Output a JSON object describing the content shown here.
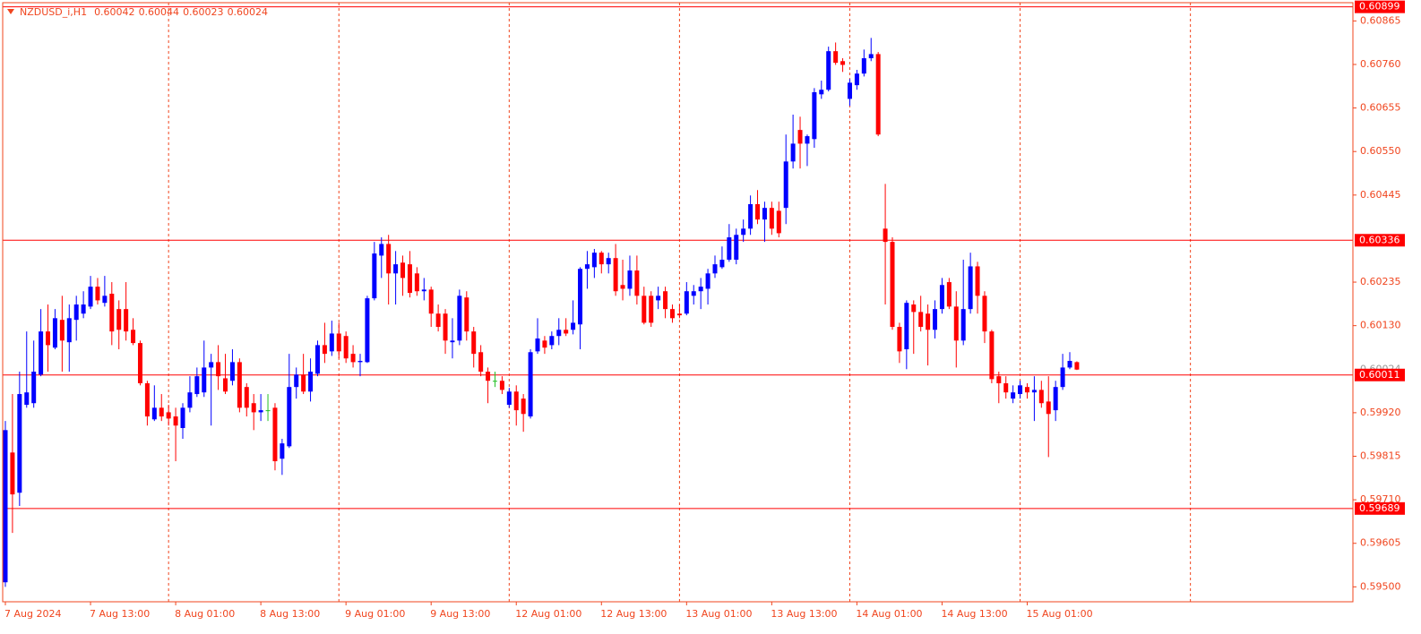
{
  "chart_data": {
    "type": "candlestick",
    "title": "NZDUSD_i,H1",
    "up_color": "#0000ff",
    "down_color": "#ff0000",
    "doji_color": "#22c022",
    "axis_color": "#f0451e",
    "hline_color": "#ff0000",
    "ylim": [
      0.59464,
      0.60909
    ],
    "yticks": [
      0.60865,
      {
        "value": 0.6076,
        "label": "0.60760"
      },
      0.60655,
      {
        "value": 0.6055,
        "label": "0.60550"
      },
      0.60445,
      0.60235,
      {
        "value": 0.6013,
        "label": "0.60130"
      },
      {
        "value": 0.5992,
        "label": "0.59920"
      },
      0.59815,
      {
        "value": 0.5971,
        "label": "0.59710"
      },
      0.59605,
      {
        "value": 0.595,
        "label": "0.59500"
      }
    ],
    "hlines": [
      0.60899,
      0.60336,
      0.60011,
      0.59689
    ],
    "categories": [
      "7 Aug 2024",
      null,
      null,
      null,
      null,
      null,
      null,
      null,
      null,
      null,
      null,
      null,
      "7 Aug 13:00",
      null,
      null,
      null,
      null,
      null,
      null,
      null,
      null,
      null,
      null,
      null,
      "8 Aug 01:00",
      null,
      null,
      null,
      null,
      null,
      null,
      null,
      null,
      null,
      null,
      null,
      "8 Aug 13:00",
      null,
      null,
      null,
      null,
      null,
      null,
      null,
      null,
      null,
      null,
      null,
      "9 Aug 01:00",
      null,
      null,
      null,
      null,
      null,
      null,
      null,
      null,
      null,
      null,
      null,
      "9 Aug 13:00",
      null,
      null,
      null,
      null,
      null,
      null,
      null,
      null,
      null,
      null,
      null,
      "12 Aug 01:00",
      null,
      null,
      null,
      null,
      null,
      null,
      null,
      null,
      null,
      null,
      null,
      "12 Aug 13:00",
      null,
      null,
      null,
      null,
      null,
      null,
      null,
      null,
      null,
      null,
      null,
      "13 Aug 01:00",
      null,
      null,
      null,
      null,
      null,
      null,
      null,
      null,
      null,
      null,
      null,
      "13 Aug 13:00",
      null,
      null,
      null,
      null,
      null,
      null,
      null,
      null,
      null,
      null,
      null,
      "14 Aug 01:00",
      null,
      null,
      null,
      null,
      null,
      null,
      null,
      null,
      null,
      null,
      null,
      "14 Aug 13:00",
      null,
      null,
      null,
      null,
      null,
      null,
      null,
      null,
      null,
      null,
      null,
      "15 Aug 01:00",
      null,
      null,
      null,
      null,
      null,
      null,
      null
    ],
    "open": [
      0.59511,
      0.59824,
      0.59727,
      0.59939,
      0.59943,
      0.60012,
      0.60116,
      0.60077,
      0.60144,
      0.6009,
      0.60144,
      0.60159,
      0.60176,
      0.60224,
      0.60185,
      0.60207,
      0.6017,
      0.6017,
      0.6012,
      0.60088,
      0.59991,
      0.59904,
      0.59932,
      0.59921,
      0.59911,
      0.59883,
      0.59932,
      0.59965,
      0.59969,
      0.60029,
      0.60042,
      0.60003,
      0.59997,
      0.60042,
      0.59982,
      0.59943,
      0.59921,
      0.59926,
      0.59932,
      0.59809,
      0.59839,
      0.59982,
      0.60012,
      0.59971,
      0.60014,
      0.60083,
      0.60068,
      0.60111,
      0.60105,
      0.60062,
      0.60042,
      0.60042,
      0.60196,
      0.60299,
      0.60327,
      0.60256,
      0.60282,
      0.60278,
      0.60256,
      0.60213,
      0.60217,
      0.60159,
      0.60159,
      0.6009,
      0.60094,
      0.60198,
      0.60116,
      0.60066,
      0.60019,
      0.59997,
      0.59997,
      0.59939,
      0.59971,
      0.59954,
      0.59911,
      0.60068,
      0.60094,
      0.60083,
      0.60105,
      0.6012,
      0.6012,
      0.60133,
      0.60267,
      0.60271,
      0.60306,
      0.60278,
      0.60293,
      0.60228,
      0.60219,
      0.60263,
      0.60202,
      0.60202,
      0.60191,
      0.60213,
      0.6017,
      0.60159,
      0.60159,
      0.60202,
      0.60213,
      0.60219,
      0.60256,
      0.60271,
      0.60289,
      0.60289,
      0.60349,
      0.60364,
      0.60423,
      0.60386,
      0.60414,
      0.60407,
      0.60414,
      0.60526,
      0.60602,
      0.60569,
      0.6058,
      0.60688,
      0.60699,
      0.60792,
      0.60768,
      0.60677,
      0.6071,
      0.60738,
      0.60775,
      0.60785,
      0.60364,
      0.60332,
      0.60127,
      0.60073,
      0.60181,
      0.60163,
      0.60159,
      0.6012,
      0.6017,
      0.60235,
      0.60176,
      0.60094,
      0.6017,
      0.60273,
      0.60202,
      0.60116,
      0.60008,
      0.59991,
      0.59954,
      0.59965,
      0.59982,
      0.59969,
      0.59975,
      0.59947,
      0.59926,
      0.59982,
      0.60029,
      0.60042
    ],
    "high": [
      0.599,
      0.59965,
      0.60019,
      0.60116,
      0.60094,
      0.6017,
      0.60181,
      0.6017,
      0.60202,
      0.60181,
      0.60202,
      0.60213,
      0.6025,
      0.60245,
      0.6025,
      0.60235,
      0.60191,
      0.60235,
      0.60148,
      0.60094,
      0.59997,
      0.59986,
      0.59965,
      0.59939,
      0.59932,
      0.59943,
      0.60008,
      0.60029,
      0.60094,
      0.60062,
      0.60083,
      0.60062,
      0.60073,
      0.60051,
      0.59991,
      0.59965,
      0.59965,
      0.59965,
      0.59943,
      0.59857,
      0.60062,
      0.60029,
      0.60062,
      0.60051,
      0.60094,
      0.60137,
      0.60142,
      0.60137,
      0.60116,
      0.60083,
      0.60062,
      0.60202,
      0.60332,
      0.60343,
      0.60349,
      0.6031,
      0.60299,
      0.6031,
      0.60271,
      0.60245,
      0.60224,
      0.60181,
      0.6017,
      0.60148,
      0.60217,
      0.60213,
      0.60127,
      0.60083,
      0.60029,
      0.60019,
      0.60008,
      0.5998,
      0.59986,
      0.59965,
      0.60073,
      0.60148,
      0.60105,
      0.60116,
      0.60148,
      0.60148,
      0.60191,
      0.60271,
      0.6031,
      0.60315,
      0.6031,
      0.60306,
      0.60327,
      0.60289,
      0.60299,
      0.60299,
      0.60224,
      0.60213,
      0.60224,
      0.60224,
      0.60181,
      0.60181,
      0.60235,
      0.60228,
      0.60245,
      0.60267,
      0.60299,
      0.60321,
      0.60375,
      0.60364,
      0.60386,
      0.60444,
      0.60457,
      0.60429,
      0.60429,
      0.60429,
      0.60591,
      0.60639,
      0.60634,
      0.60591,
      0.60703,
      0.60721,
      0.60803,
      0.60813,
      0.60775,
      0.60725,
      0.60747,
      0.60796,
      0.60824,
      0.6079,
      0.60472,
      0.60343,
      0.60137,
      0.60191,
      0.60191,
      0.60202,
      0.60181,
      0.60191,
      0.60245,
      0.60245,
      0.60213,
      0.60289,
      0.60306,
      0.60284,
      0.60213,
      0.6012,
      0.60019,
      0.60008,
      0.59986,
      0.59997,
      0.59991,
      0.60008,
      0.59997,
      0.60008,
      0.59997,
      0.60062,
      0.60066,
      0.60044
    ],
    "low": [
      0.595,
      0.5963,
      0.59695,
      0.59932,
      0.59932,
      0.60008,
      0.60019,
      0.60073,
      0.60019,
      0.60019,
      0.60094,
      0.60148,
      0.6017,
      0.60181,
      0.60176,
      0.60083,
      0.60073,
      0.60094,
      0.60083,
      0.59986,
      0.59889,
      0.599,
      0.599,
      0.59889,
      0.59803,
      0.59857,
      0.59921,
      0.59958,
      0.59958,
      0.59889,
      0.59975,
      0.59965,
      0.59986,
      0.59921,
      0.59911,
      0.59878,
      0.599,
      0.599,
      0.59781,
      0.5977,
      0.59835,
      0.59954,
      0.59965,
      0.59947,
      0.60008,
      0.6004,
      0.60057,
      0.60051,
      0.6004,
      0.60029,
      0.60008,
      0.6004,
      0.60191,
      0.60245,
      0.60181,
      0.60181,
      0.60202,
      0.60198,
      0.60202,
      0.60191,
      0.60127,
      0.60116,
      0.60062,
      0.60051,
      0.60083,
      0.60094,
      0.60029,
      0.60008,
      0.59943,
      0.59982,
      0.59965,
      0.59932,
      0.59889,
      0.59874,
      0.59906,
      0.60062,
      0.60062,
      0.60073,
      0.60083,
      0.60105,
      0.60109,
      0.60073,
      0.60219,
      0.60245,
      0.60256,
      0.60256,
      0.60202,
      0.60191,
      0.60202,
      0.60181,
      0.60133,
      0.60127,
      0.6017,
      0.60148,
      0.60137,
      0.60148,
      0.60155,
      0.60181,
      0.6017,
      0.60181,
      0.60245,
      0.60267,
      0.60284,
      0.60278,
      0.60332,
      0.60349,
      0.60375,
      0.60332,
      0.60349,
      0.60343,
      0.60375,
      0.60509,
      0.60509,
      0.60515,
      0.60559,
      0.60677,
      0.60695,
      0.60759,
      0.60742,
      0.6066,
      0.60699,
      0.60731,
      0.60768,
      0.60587,
      0.60181,
      0.6012,
      0.6004,
      0.60025,
      0.60062,
      0.60116,
      0.60034,
      0.60099,
      0.60159,
      0.6017,
      0.60029,
      0.60083,
      0.60159,
      0.60159,
      0.60088,
      0.59991,
      0.59943,
      0.59954,
      0.59943,
      0.59954,
      0.59954,
      0.599,
      0.59932,
      0.59813,
      0.599,
      0.59975,
      0.60025,
      0.60023
    ],
    "close": [
      0.59878,
      0.59723,
      0.59965,
      0.59969,
      0.60019,
      0.60116,
      0.60083,
      0.60148,
      0.60094,
      0.60148,
      0.60181,
      0.60181,
      0.60224,
      0.60191,
      0.60202,
      0.60116,
      0.6012,
      0.60116,
      0.60088,
      0.59991,
      0.59911,
      0.59932,
      0.59911,
      0.59906,
      0.59889,
      0.59932,
      0.59969,
      0.60008,
      0.60029,
      0.60042,
      0.60008,
      0.59971,
      0.60042,
      0.59932,
      0.59932,
      0.59921,
      0.59926,
      0.59926,
      0.59803,
      0.59846,
      0.59982,
      0.60012,
      0.59971,
      0.60019,
      0.60083,
      0.60062,
      0.60111,
      0.60068,
      0.60051,
      0.60042,
      0.60045,
      0.60196,
      0.60304,
      0.60327,
      0.60256,
      0.60278,
      0.60245,
      0.60209,
      0.60213,
      0.60217,
      0.60159,
      0.60127,
      0.60094,
      0.60094,
      0.60202,
      0.60116,
      0.60062,
      0.60019,
      0.59997,
      0.59997,
      0.59975,
      0.59971,
      0.59926,
      0.59917,
      0.60066,
      0.60099,
      0.60077,
      0.60105,
      0.6012,
      0.60111,
      0.60137,
      0.60267,
      0.60278,
      0.60306,
      0.60278,
      0.60293,
      0.60213,
      0.60219,
      0.60263,
      0.60202,
      0.60137,
      0.60137,
      0.60202,
      0.6017,
      0.60148,
      0.60155,
      0.60213,
      0.60213,
      0.60224,
      0.60256,
      0.60278,
      0.60289,
      0.60343,
      0.60349,
      0.60364,
      0.60423,
      0.60386,
      0.60414,
      0.60364,
      0.60353,
      0.60526,
      0.60569,
      0.60569,
      0.60587,
      0.60693,
      0.60699,
      0.60792,
      0.60764,
      0.60759,
      0.60716,
      0.60738,
      0.60775,
      0.60785,
      0.60591,
      0.60332,
      0.60127,
      0.60068,
      0.60185,
      0.60163,
      0.60127,
      0.6012,
      0.6017,
      0.60228,
      0.60176,
      0.60094,
      0.6017,
      0.60273,
      0.60202,
      0.60116,
      0.60001,
      0.59991,
      0.59969,
      0.59969,
      0.59986,
      0.59969,
      0.59975,
      0.59943,
      0.59917,
      0.59982,
      0.60029,
      0.60045,
      0.60024
    ]
  }
}
